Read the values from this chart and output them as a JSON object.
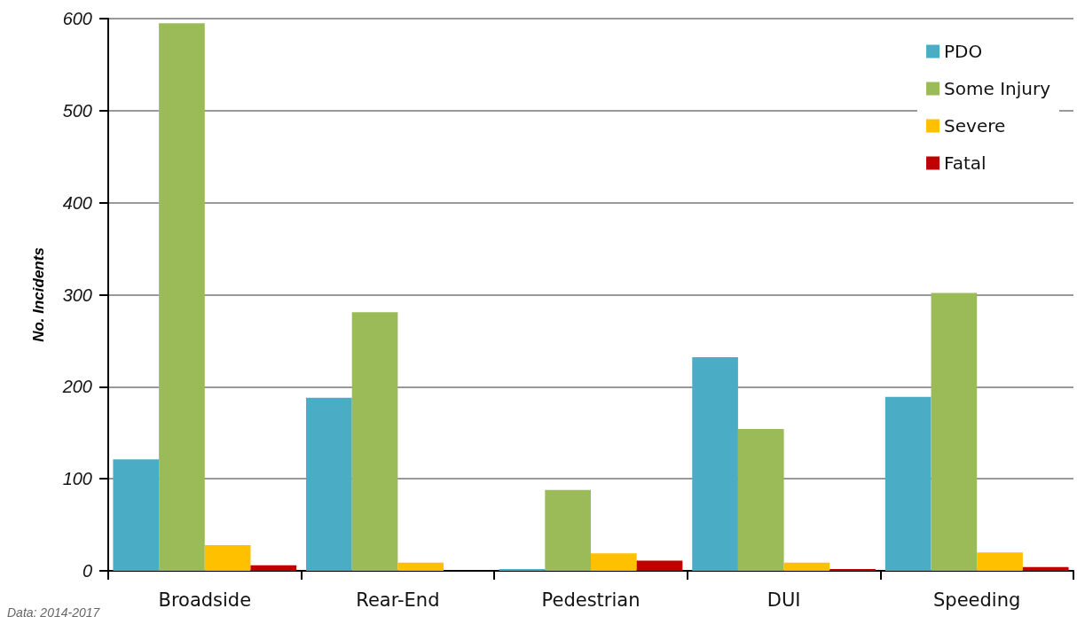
{
  "chart_data": {
    "type": "bar",
    "ylabel": "No. Incidents",
    "annotations": [
      "Data: 2014-2017"
    ],
    "categories": [
      "Broadside",
      "Rear-End",
      "Pedestrian",
      "DUI",
      "Speeding"
    ],
    "series": [
      {
        "name": "PDO",
        "color": "#4bacc6",
        "values": [
          121,
          188,
          2,
          232,
          189
        ]
      },
      {
        "name": "Some Injury",
        "color": "#9bbb59",
        "values": [
          595,
          281,
          88,
          154,
          302
        ]
      },
      {
        "name": "Severe",
        "color": "#ffc000",
        "values": [
          28,
          9,
          19,
          9,
          20
        ]
      },
      {
        "name": "Fatal",
        "color": "#c00000",
        "values": [
          6,
          0,
          11,
          2,
          4
        ]
      }
    ],
    "ylim": [
      0,
      600
    ],
    "yticks": [
      0,
      100,
      200,
      300,
      400,
      500,
      600
    ],
    "grid": "y",
    "legend": "top right"
  }
}
